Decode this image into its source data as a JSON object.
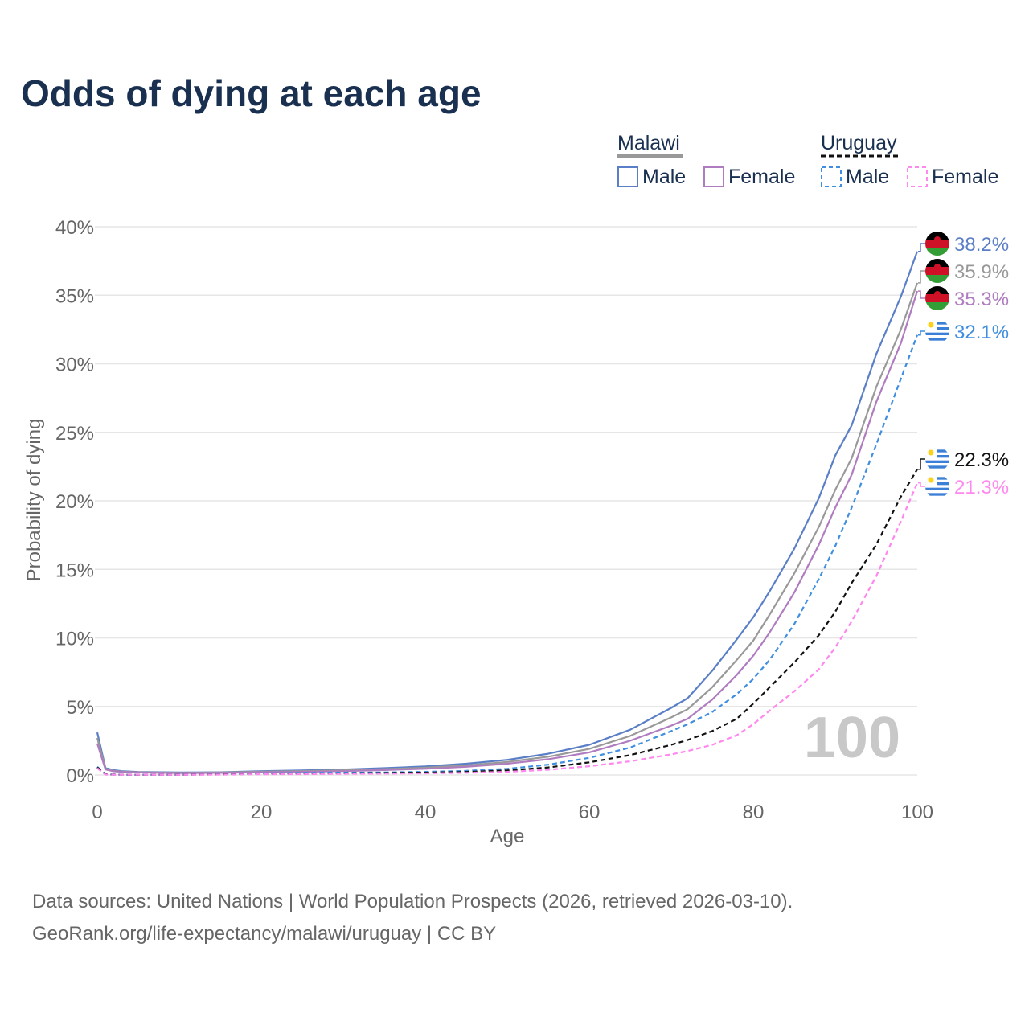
{
  "chart_data": {
    "type": "line",
    "title": "Odds of dying at each age",
    "xlabel": "Age",
    "ylabel": "Probability of dying",
    "xlim": [
      0,
      100
    ],
    "ylim": [
      0,
      40
    ],
    "x_ticks": [
      "0",
      "20",
      "40",
      "60",
      "80",
      "100"
    ],
    "y_ticks": [
      "0%",
      "5%",
      "10%",
      "15%",
      "20%",
      "25%",
      "30%",
      "35%",
      "40%"
    ],
    "grid": true,
    "watermark": "100",
    "legend": {
      "placement": "top-right",
      "groups": [
        {
          "country": "Malawi",
          "items": [
            "Male",
            "Female"
          ],
          "style": "solid"
        },
        {
          "country": "Uruguay",
          "items": [
            "Male",
            "Female"
          ],
          "style": "dashed"
        }
      ]
    },
    "series": [
      {
        "name": "Malawi Male",
        "color": "#5b7fc7",
        "style": "solid",
        "end_label": "38.2%",
        "points": [
          [
            0,
            3.1
          ],
          [
            1,
            0.5
          ],
          [
            2,
            0.35
          ],
          [
            3,
            0.28
          ],
          [
            5,
            0.22
          ],
          [
            10,
            0.18
          ],
          [
            15,
            0.2
          ],
          [
            20,
            0.28
          ],
          [
            25,
            0.33
          ],
          [
            30,
            0.4
          ],
          [
            35,
            0.5
          ],
          [
            40,
            0.62
          ],
          [
            45,
            0.82
          ],
          [
            50,
            1.1
          ],
          [
            55,
            1.55
          ],
          [
            60,
            2.2
          ],
          [
            65,
            3.3
          ],
          [
            70,
            4.9
          ],
          [
            72,
            5.6
          ],
          [
            75,
            7.6
          ],
          [
            78,
            9.9
          ],
          [
            80,
            11.5
          ],
          [
            82,
            13.4
          ],
          [
            85,
            16.5
          ],
          [
            88,
            20.2
          ],
          [
            90,
            23.3
          ],
          [
            92,
            25.5
          ],
          [
            95,
            30.7
          ],
          [
            98,
            34.9
          ],
          [
            100,
            38.2
          ]
        ]
      },
      {
        "name": "Malawi (both sexes)",
        "color": "#999999",
        "style": "solid",
        "end_label": "35.9%",
        "points": [
          [
            0,
            2.7
          ],
          [
            1,
            0.45
          ],
          [
            2,
            0.3
          ],
          [
            3,
            0.24
          ],
          [
            5,
            0.2
          ],
          [
            10,
            0.16
          ],
          [
            15,
            0.18
          ],
          [
            20,
            0.24
          ],
          [
            25,
            0.28
          ],
          [
            30,
            0.34
          ],
          [
            35,
            0.43
          ],
          [
            40,
            0.53
          ],
          [
            45,
            0.7
          ],
          [
            50,
            0.95
          ],
          [
            55,
            1.33
          ],
          [
            60,
            1.9
          ],
          [
            65,
            2.85
          ],
          [
            70,
            4.2
          ],
          [
            72,
            4.8
          ],
          [
            75,
            6.4
          ],
          [
            78,
            8.4
          ],
          [
            80,
            9.8
          ],
          [
            82,
            11.7
          ],
          [
            85,
            14.7
          ],
          [
            88,
            18.1
          ],
          [
            90,
            20.8
          ],
          [
            92,
            23.1
          ],
          [
            95,
            28.3
          ],
          [
            98,
            32.5
          ],
          [
            100,
            35.9
          ]
        ]
      },
      {
        "name": "Malawi Female",
        "color": "#b07cc0",
        "style": "solid",
        "end_label": "35.3%",
        "points": [
          [
            0,
            2.3
          ],
          [
            1,
            0.4
          ],
          [
            2,
            0.27
          ],
          [
            3,
            0.22
          ],
          [
            5,
            0.18
          ],
          [
            10,
            0.14
          ],
          [
            15,
            0.15
          ],
          [
            20,
            0.2
          ],
          [
            25,
            0.23
          ],
          [
            30,
            0.28
          ],
          [
            35,
            0.36
          ],
          [
            40,
            0.45
          ],
          [
            45,
            0.6
          ],
          [
            50,
            0.82
          ],
          [
            55,
            1.15
          ],
          [
            60,
            1.65
          ],
          [
            65,
            2.5
          ],
          [
            70,
            3.6
          ],
          [
            72,
            4.1
          ],
          [
            75,
            5.5
          ],
          [
            78,
            7.3
          ],
          [
            80,
            8.7
          ],
          [
            82,
            10.4
          ],
          [
            85,
            13.3
          ],
          [
            88,
            16.8
          ],
          [
            90,
            19.5
          ],
          [
            92,
            21.9
          ],
          [
            95,
            27.2
          ],
          [
            98,
            31.5
          ],
          [
            100,
            35.3
          ]
        ]
      },
      {
        "name": "Uruguay Male",
        "color": "#3f8ee0",
        "style": "dashed",
        "end_label": "32.1%",
        "points": [
          [
            0,
            0.6
          ],
          [
            1,
            0.05
          ],
          [
            2,
            0.03
          ],
          [
            5,
            0.02
          ],
          [
            10,
            0.02
          ],
          [
            15,
            0.05
          ],
          [
            20,
            0.12
          ],
          [
            25,
            0.15
          ],
          [
            30,
            0.17
          ],
          [
            35,
            0.19
          ],
          [
            40,
            0.23
          ],
          [
            45,
            0.3
          ],
          [
            50,
            0.45
          ],
          [
            55,
            0.75
          ],
          [
            60,
            1.25
          ],
          [
            65,
            2.0
          ],
          [
            70,
            3.2
          ],
          [
            72,
            3.7
          ],
          [
            75,
            4.6
          ],
          [
            78,
            5.9
          ],
          [
            80,
            7.0
          ],
          [
            82,
            8.4
          ],
          [
            85,
            11.0
          ],
          [
            88,
            14.3
          ],
          [
            90,
            16.7
          ],
          [
            92,
            19.5
          ],
          [
            95,
            24.1
          ],
          [
            98,
            28.9
          ],
          [
            100,
            32.1
          ]
        ]
      },
      {
        "name": "Uruguay (both sexes)",
        "color": "#111111",
        "style": "dashed",
        "end_label": "22.3%",
        "points": [
          [
            0,
            0.55
          ],
          [
            1,
            0.04
          ],
          [
            2,
            0.03
          ],
          [
            5,
            0.02
          ],
          [
            10,
            0.02
          ],
          [
            15,
            0.04
          ],
          [
            20,
            0.08
          ],
          [
            25,
            0.1
          ],
          [
            30,
            0.12
          ],
          [
            35,
            0.14
          ],
          [
            40,
            0.17
          ],
          [
            45,
            0.22
          ],
          [
            50,
            0.33
          ],
          [
            55,
            0.55
          ],
          [
            60,
            0.92
          ],
          [
            65,
            1.45
          ],
          [
            70,
            2.2
          ],
          [
            72,
            2.55
          ],
          [
            75,
            3.2
          ],
          [
            78,
            4.1
          ],
          [
            80,
            5.2
          ],
          [
            82,
            6.4
          ],
          [
            85,
            8.2
          ],
          [
            88,
            10.2
          ],
          [
            90,
            11.9
          ],
          [
            92,
            14.0
          ],
          [
            95,
            16.8
          ],
          [
            98,
            20.3
          ],
          [
            100,
            22.3
          ]
        ]
      },
      {
        "name": "Uruguay Female",
        "color": "#ff88ee",
        "style": "dashed",
        "end_label": "21.3%",
        "points": [
          [
            0,
            0.5
          ],
          [
            1,
            0.03
          ],
          [
            2,
            0.02
          ],
          [
            5,
            0.02
          ],
          [
            10,
            0.01
          ],
          [
            15,
            0.03
          ],
          [
            20,
            0.05
          ],
          [
            25,
            0.06
          ],
          [
            30,
            0.08
          ],
          [
            35,
            0.1
          ],
          [
            40,
            0.12
          ],
          [
            45,
            0.16
          ],
          [
            50,
            0.23
          ],
          [
            55,
            0.38
          ],
          [
            60,
            0.64
          ],
          [
            65,
            1.0
          ],
          [
            70,
            1.5
          ],
          [
            72,
            1.75
          ],
          [
            75,
            2.2
          ],
          [
            78,
            2.9
          ],
          [
            80,
            3.7
          ],
          [
            82,
            4.7
          ],
          [
            85,
            6.1
          ],
          [
            88,
            7.7
          ],
          [
            90,
            9.3
          ],
          [
            92,
            11.2
          ],
          [
            95,
            14.5
          ],
          [
            98,
            18.5
          ],
          [
            100,
            21.3
          ]
        ]
      }
    ],
    "end_labels": [
      {
        "text": "38.2%",
        "color": "#5b7fc7",
        "flag": "malawi"
      },
      {
        "text": "35.9%",
        "color": "#999999",
        "flag": "malawi"
      },
      {
        "text": "35.3%",
        "color": "#b07cc0",
        "flag": "malawi"
      },
      {
        "text": "32.1%",
        "color": "#3f8ee0",
        "flag": "uruguay"
      },
      {
        "text": "22.3%",
        "color": "#111111",
        "flag": "uruguay"
      },
      {
        "text": "21.3%",
        "color": "#ff88ee",
        "flag": "uruguay"
      }
    ]
  },
  "legend_labels": {
    "malawi": "Malawi",
    "uruguay": "Uruguay",
    "male": "Male",
    "female": "Female"
  },
  "footer": {
    "line1": "Data sources: United Nations | World Population Prospects (2026, retrieved 2026-03-10).",
    "line2": "GeoRank.org/life-expectancy/malawi/uruguay | CC BY"
  }
}
